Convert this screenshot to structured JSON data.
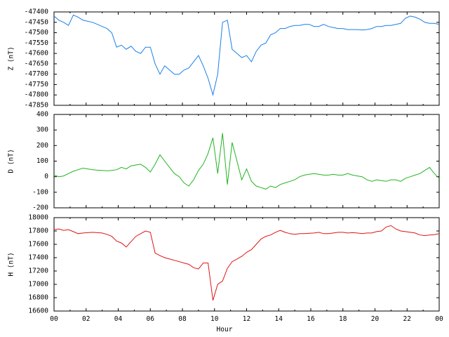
{
  "chart_data": {
    "type": "line",
    "x_label": "Hour",
    "x_range": [
      0,
      24
    ],
    "x_tick_labels": [
      "00",
      "02",
      "04",
      "06",
      "08",
      "10",
      "12",
      "14",
      "16",
      "18",
      "20",
      "22",
      "00"
    ],
    "grid": false,
    "panels": [
      {
        "id": "z",
        "ylabel": "Z (nT)",
        "color": "#1a7fe8",
        "ylim": [
          -47850,
          -47400
        ],
        "y_ticks": [
          -47400,
          -47450,
          -47500,
          -47550,
          -47600,
          -47650,
          -47700,
          -47750,
          -47800,
          -47850
        ],
        "series": {
          "x": [
            0,
            0.3,
            0.6,
            0.9,
            1.2,
            1.5,
            1.8,
            2.1,
            2.4,
            2.7,
            3.0,
            3.3,
            3.6,
            3.9,
            4.2,
            4.5,
            4.8,
            5.1,
            5.4,
            5.7,
            6.0,
            6.3,
            6.6,
            6.9,
            7.2,
            7.5,
            7.8,
            8.1,
            8.4,
            8.7,
            9.0,
            9.3,
            9.6,
            9.9,
            10.2,
            10.5,
            10.8,
            11.1,
            11.4,
            11.7,
            12.0,
            12.3,
            12.6,
            12.9,
            13.2,
            13.5,
            13.8,
            14.1,
            14.4,
            14.7,
            15.0,
            15.3,
            15.6,
            15.9,
            16.2,
            16.5,
            16.8,
            17.1,
            17.4,
            17.7,
            18.0,
            18.3,
            18.6,
            18.9,
            19.2,
            19.5,
            19.8,
            20.1,
            20.4,
            20.7,
            21.0,
            21.3,
            21.6,
            21.9,
            22.2,
            22.5,
            22.8,
            23.1,
            23.4,
            23.7,
            24.0
          ],
          "values": [
            -47420,
            -47440,
            -47450,
            -47465,
            -47415,
            -47425,
            -47440,
            -47445,
            -47450,
            -47460,
            -47470,
            -47480,
            -47500,
            -47570,
            -47560,
            -47580,
            -47565,
            -47590,
            -47600,
            -47570,
            -47570,
            -47650,
            -47700,
            -47660,
            -47680,
            -47700,
            -47700,
            -47680,
            -47670,
            -47640,
            -47610,
            -47660,
            -47720,
            -47800,
            -47700,
            -47450,
            -47440,
            -47580,
            -47600,
            -47620,
            -47610,
            -47640,
            -47590,
            -47560,
            -47550,
            -47510,
            -47500,
            -47480,
            -47480,
            -47470,
            -47465,
            -47465,
            -47460,
            -47460,
            -47470,
            -47470,
            -47460,
            -47470,
            -47475,
            -47480,
            -47480,
            -47485,
            -47485,
            -47485,
            -47487,
            -47485,
            -47480,
            -47470,
            -47470,
            -47465,
            -47465,
            -47460,
            -47455,
            -47430,
            -47420,
            -47425,
            -47435,
            -47450,
            -47455,
            -47455,
            -47460
          ]
        }
      },
      {
        "id": "d",
        "ylabel": "D (nT)",
        "color": "#22b422",
        "ylim": [
          -200,
          400
        ],
        "y_ticks": [
          400,
          300,
          200,
          100,
          0,
          -100,
          -200
        ],
        "series": {
          "x": [
            0,
            0.3,
            0.6,
            0.9,
            1.2,
            1.5,
            1.8,
            2.1,
            2.4,
            2.7,
            3.0,
            3.3,
            3.6,
            3.9,
            4.2,
            4.5,
            4.8,
            5.1,
            5.4,
            5.7,
            6.0,
            6.3,
            6.6,
            6.9,
            7.2,
            7.5,
            7.8,
            8.1,
            8.4,
            8.7,
            9.0,
            9.3,
            9.6,
            9.9,
            10.2,
            10.5,
            10.8,
            11.1,
            11.4,
            11.7,
            12.0,
            12.3,
            12.6,
            12.9,
            13.2,
            13.5,
            13.8,
            14.1,
            14.4,
            14.7,
            15.0,
            15.3,
            15.6,
            15.9,
            16.2,
            16.5,
            16.8,
            17.1,
            17.4,
            17.7,
            18.0,
            18.3,
            18.6,
            18.9,
            19.2,
            19.5,
            19.8,
            20.1,
            20.4,
            20.7,
            21.0,
            21.3,
            21.6,
            21.9,
            22.2,
            22.5,
            22.8,
            23.1,
            23.4,
            23.7,
            24.0
          ],
          "values": [
            10,
            0,
            5,
            20,
            35,
            45,
            55,
            50,
            45,
            42,
            40,
            38,
            40,
            45,
            60,
            50,
            70,
            75,
            80,
            60,
            30,
            80,
            140,
            100,
            60,
            20,
            0,
            -40,
            -60,
            -20,
            40,
            80,
            150,
            250,
            20,
            280,
            -50,
            220,
            100,
            -20,
            50,
            -30,
            -60,
            -70,
            -80,
            -60,
            -70,
            -50,
            -40,
            -30,
            -20,
            0,
            10,
            15,
            20,
            15,
            10,
            10,
            15,
            10,
            10,
            20,
            10,
            5,
            0,
            -20,
            -30,
            -20,
            -25,
            -30,
            -20,
            -20,
            -30,
            -10,
            0,
            10,
            20,
            40,
            60,
            20,
            -10
          ]
        }
      },
      {
        "id": "h",
        "ylabel": "H (nT)",
        "color": "#e01414",
        "ylim": [
          16600,
          18000
        ],
        "y_ticks": [
          18000,
          17800,
          17600,
          17400,
          17200,
          17000,
          16800,
          16600
        ],
        "series": {
          "x": [
            0,
            0.3,
            0.6,
            0.9,
            1.2,
            1.5,
            1.8,
            2.1,
            2.4,
            2.7,
            3.0,
            3.3,
            3.6,
            3.9,
            4.2,
            4.5,
            4.8,
            5.1,
            5.4,
            5.7,
            6.0,
            6.3,
            6.6,
            6.9,
            7.2,
            7.5,
            7.8,
            8.1,
            8.4,
            8.7,
            9.0,
            9.3,
            9.6,
            9.9,
            10.2,
            10.5,
            10.8,
            11.1,
            11.4,
            11.7,
            12.0,
            12.3,
            12.6,
            12.9,
            13.2,
            13.5,
            13.8,
            14.1,
            14.4,
            14.7,
            15.0,
            15.3,
            15.6,
            15.9,
            16.2,
            16.5,
            16.8,
            17.1,
            17.4,
            17.7,
            18.0,
            18.3,
            18.6,
            18.9,
            19.2,
            19.5,
            19.8,
            20.1,
            20.4,
            20.7,
            21.0,
            21.3,
            21.6,
            21.9,
            22.2,
            22.5,
            22.8,
            23.1,
            23.4,
            23.7,
            24.0
          ],
          "values": [
            17820,
            17830,
            17810,
            17820,
            17790,
            17760,
            17770,
            17775,
            17780,
            17775,
            17770,
            17750,
            17720,
            17650,
            17620,
            17560,
            17640,
            17720,
            17760,
            17800,
            17780,
            17470,
            17430,
            17400,
            17380,
            17360,
            17340,
            17320,
            17300,
            17250,
            17230,
            17320,
            17320,
            16760,
            17000,
            17050,
            17240,
            17340,
            17380,
            17420,
            17480,
            17520,
            17600,
            17680,
            17720,
            17740,
            17780,
            17810,
            17780,
            17760,
            17750,
            17760,
            17760,
            17765,
            17770,
            17780,
            17760,
            17760,
            17770,
            17780,
            17780,
            17770,
            17775,
            17770,
            17760,
            17770,
            17770,
            17790,
            17800,
            17860,
            17880,
            17830,
            17800,
            17790,
            17780,
            17770,
            17740,
            17730,
            17740,
            17745,
            17760
          ]
        }
      }
    ]
  }
}
